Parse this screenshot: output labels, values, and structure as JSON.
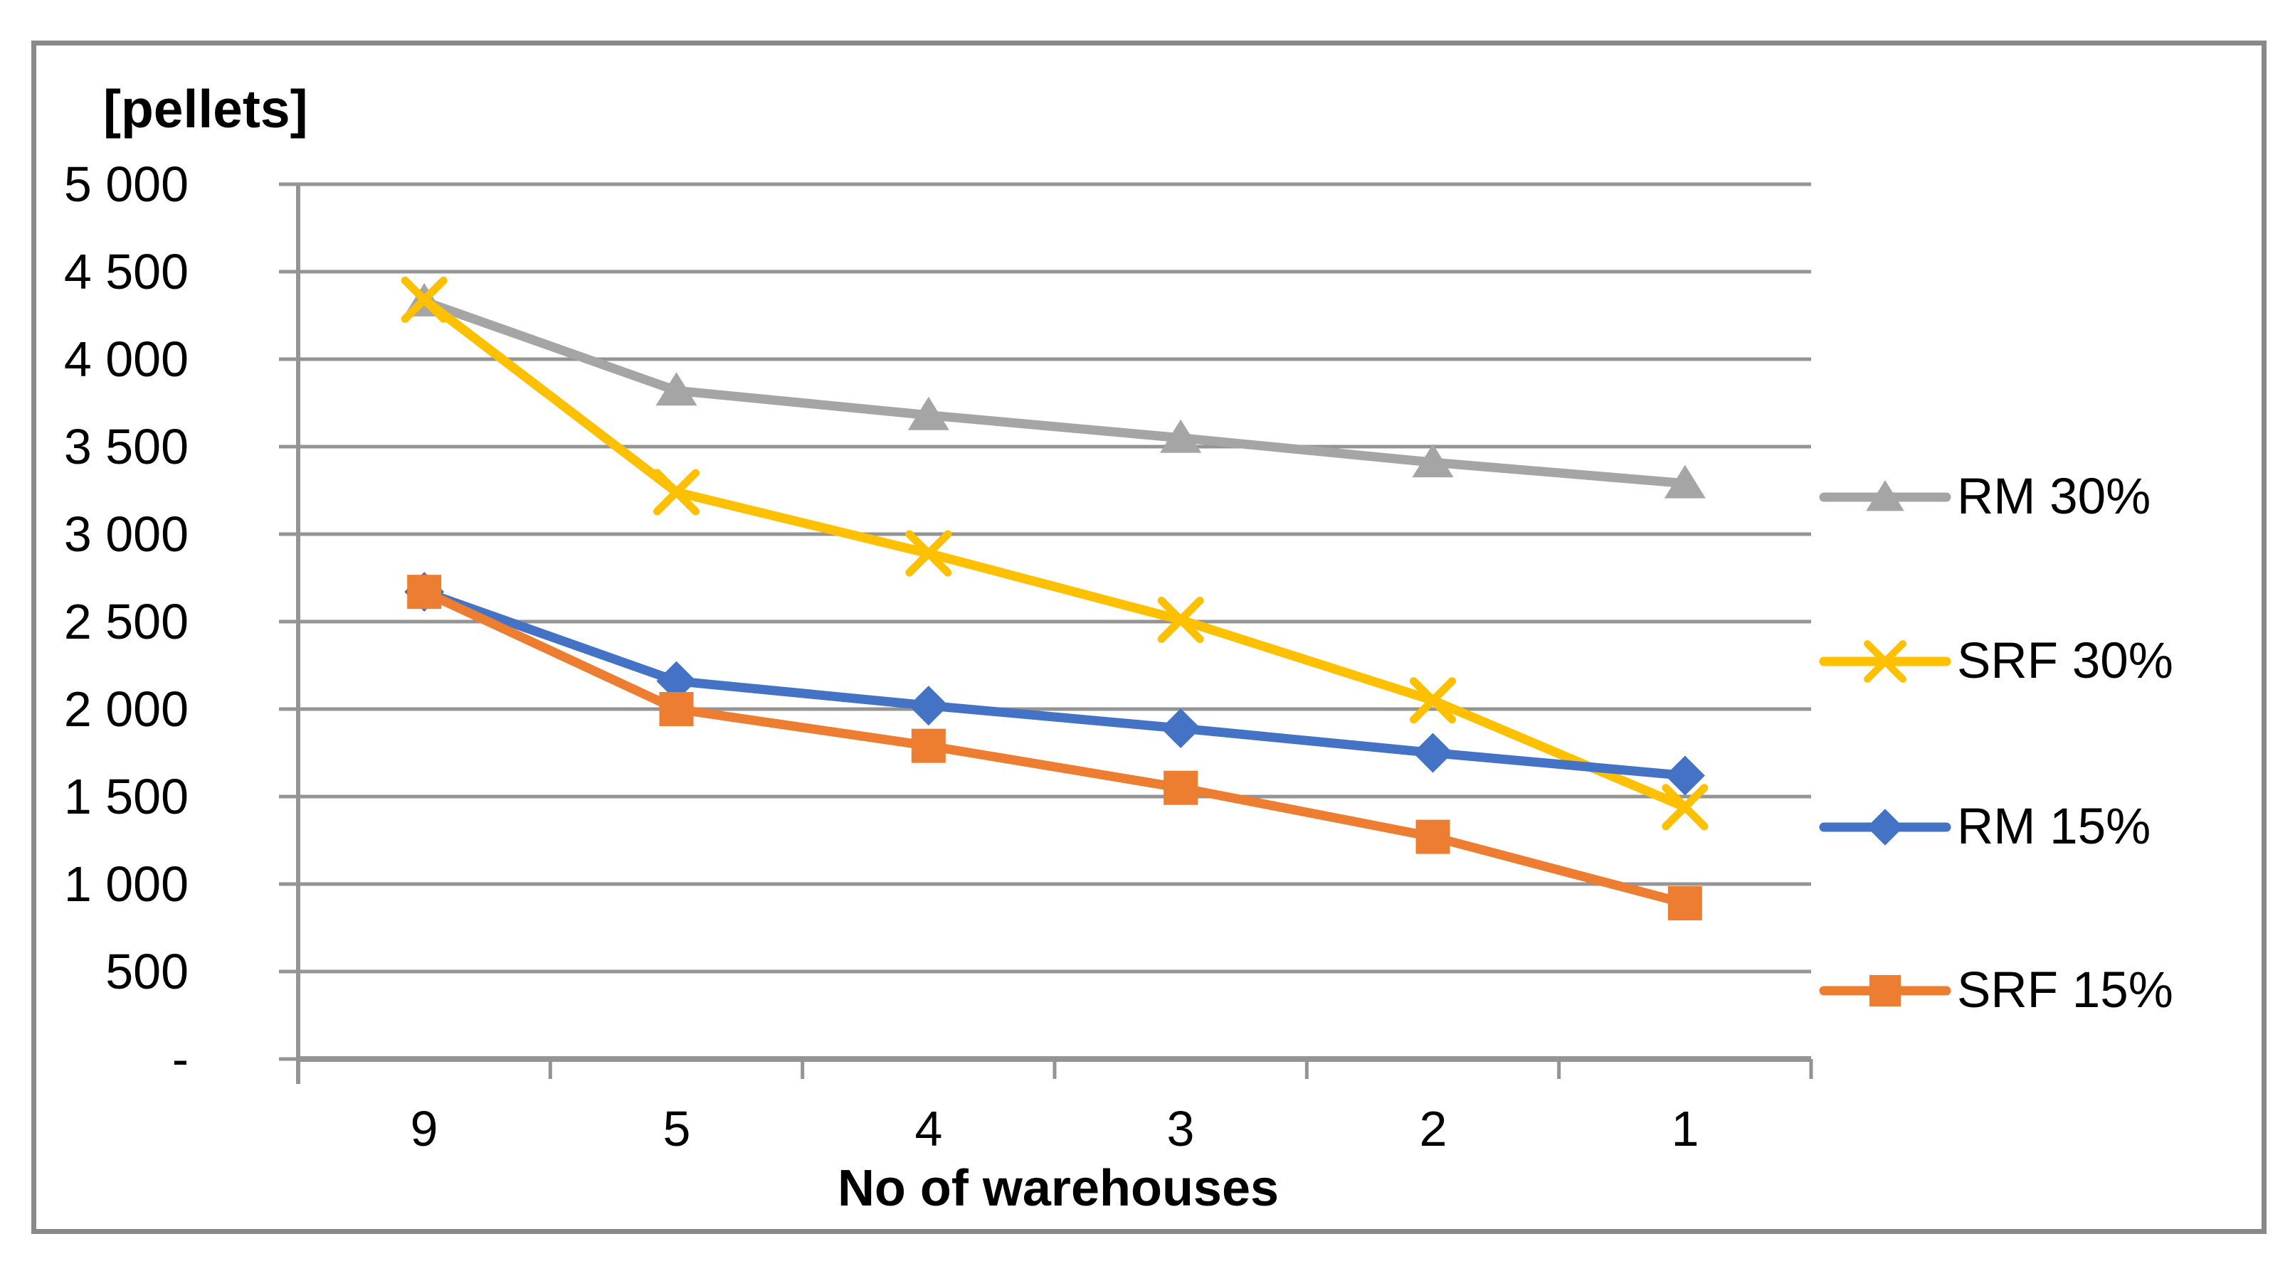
{
  "chart_data": {
    "type": "line",
    "title": "",
    "y_unit_label": "[pellets]",
    "xlabel": "No of warehouses",
    "categories": [
      "9",
      "5",
      "4",
      "3",
      "2",
      "1"
    ],
    "series": [
      {
        "name": "RM 30%",
        "marker": "triangle",
        "color": "#A5A5A5",
        "values": [
          4330,
          3820,
          3680,
          3550,
          3410,
          3290
        ]
      },
      {
        "name": "SRF 30%",
        "marker": "x",
        "color": "#FFC000",
        "values": [
          4340,
          3240,
          2890,
          2510,
          2050,
          1440
        ]
      },
      {
        "name": "RM 15%",
        "marker": "diamond",
        "color": "#4472C4",
        "values": [
          2670,
          2160,
          2020,
          1890,
          1750,
          1620
        ]
      },
      {
        "name": "SRF 15%",
        "marker": "square",
        "color": "#ED7D31",
        "values": [
          2670,
          2000,
          1790,
          1550,
          1270,
          890
        ]
      }
    ],
    "ylim": [
      0,
      5000
    ],
    "ytick_step": 500,
    "yticklabels": [
      "5 000",
      "4 500",
      "4 000",
      "3 500",
      "3 000",
      "2 500",
      "2 000",
      "1 500",
      "1 000",
      "500",
      "-"
    ],
    "grid": true,
    "legend_position": "right",
    "gridline_color": "#949494",
    "axis_color": "#949494",
    "frame_border_color": "#898989"
  }
}
